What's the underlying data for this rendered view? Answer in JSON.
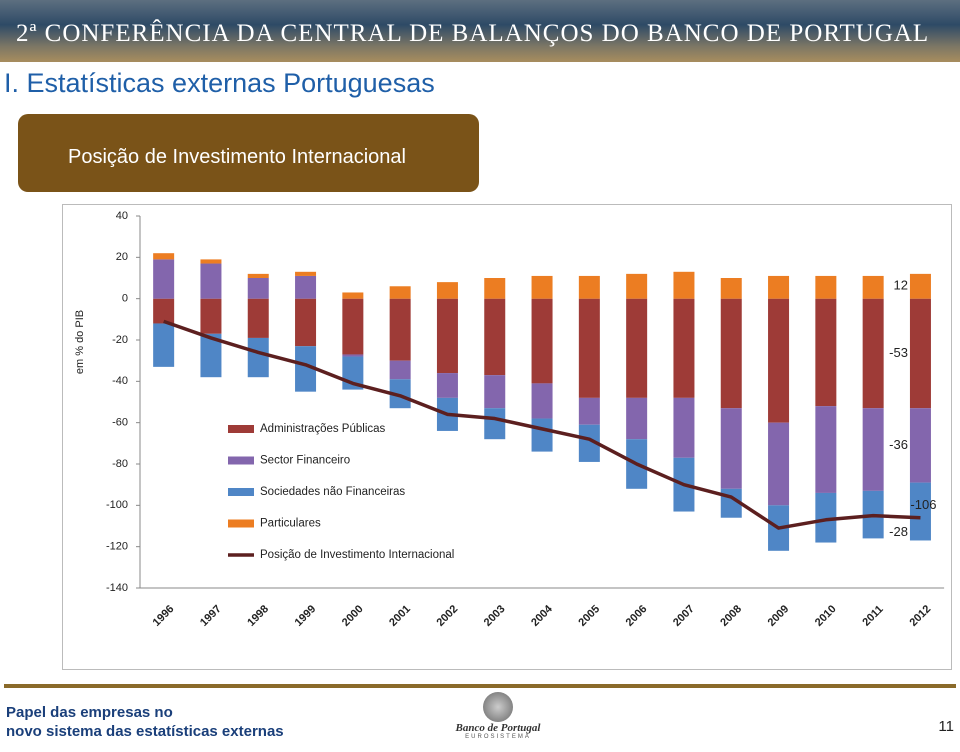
{
  "slide": {
    "header": "2ª CONFERÊNCIA DA CENTRAL DE BALANÇOS DO BANCO DE PORTUGAL",
    "title": "I. Estatísticas externas Portuguesas",
    "subtitle": "Posição de Investimento Internacional",
    "footer_lines": [
      "Papel das empresas no",
      "novo sistema das estatísticas externas"
    ],
    "logo": "Banco de Portugal",
    "logo_sub": "EUROSISTEMA",
    "page": "11"
  },
  "chart_data": {
    "type": "bar",
    "stacked": true,
    "y_label": "em % do PIB",
    "categories": [
      "1996",
      "1997",
      "1998",
      "1999",
      "2000",
      "2001",
      "2002",
      "2003",
      "2004",
      "2005",
      "2006",
      "2007",
      "2008",
      "2009",
      "2010",
      "2011",
      "2012"
    ],
    "ylim": [
      -140,
      40
    ],
    "yticks": [
      40,
      20,
      0,
      -20,
      -40,
      -60,
      -80,
      -100,
      -120,
      -140
    ],
    "series": [
      {
        "name": "Administrações Públicas",
        "color": "#9e3b37",
        "values": [
          -12,
          -17,
          -19,
          -23,
          -27,
          -30,
          -36,
          -37,
          -41,
          -48,
          -48,
          -48,
          -53,
          -60,
          -52,
          -53,
          -53
        ]
      },
      {
        "name": "Sector Financeiro",
        "color": "#8366ad",
        "values": [
          19,
          17,
          10,
          11,
          -1,
          -9,
          -12,
          -16,
          -17,
          -13,
          -20,
          -29,
          -39,
          -40,
          -42,
          -40,
          -36
        ]
      },
      {
        "name": "Sociedades não Financeiras",
        "color": "#4f86c6",
        "values": [
          -21,
          -21,
          -19,
          -22,
          -16,
          -14,
          -16,
          -15,
          -16,
          -18,
          -24,
          -26,
          -14,
          -22,
          -24,
          -23,
          -28
        ]
      },
      {
        "name": "Particulares",
        "color": "#ec7d22",
        "values": [
          3,
          2,
          2,
          2,
          3,
          6,
          8,
          10,
          11,
          11,
          12,
          13,
          10,
          11,
          11,
          11,
          12
        ]
      },
      {
        "name": "Posição de Investimento Internacional",
        "type": "line",
        "color": "#5c1f1f",
        "values": [
          -11,
          -19,
          -26,
          -32,
          -41,
          -47,
          -56,
          -58,
          -63,
          -68,
          -80,
          -90,
          -96,
          -111,
          -107,
          -105,
          -106
        ]
      }
    ]
  }
}
